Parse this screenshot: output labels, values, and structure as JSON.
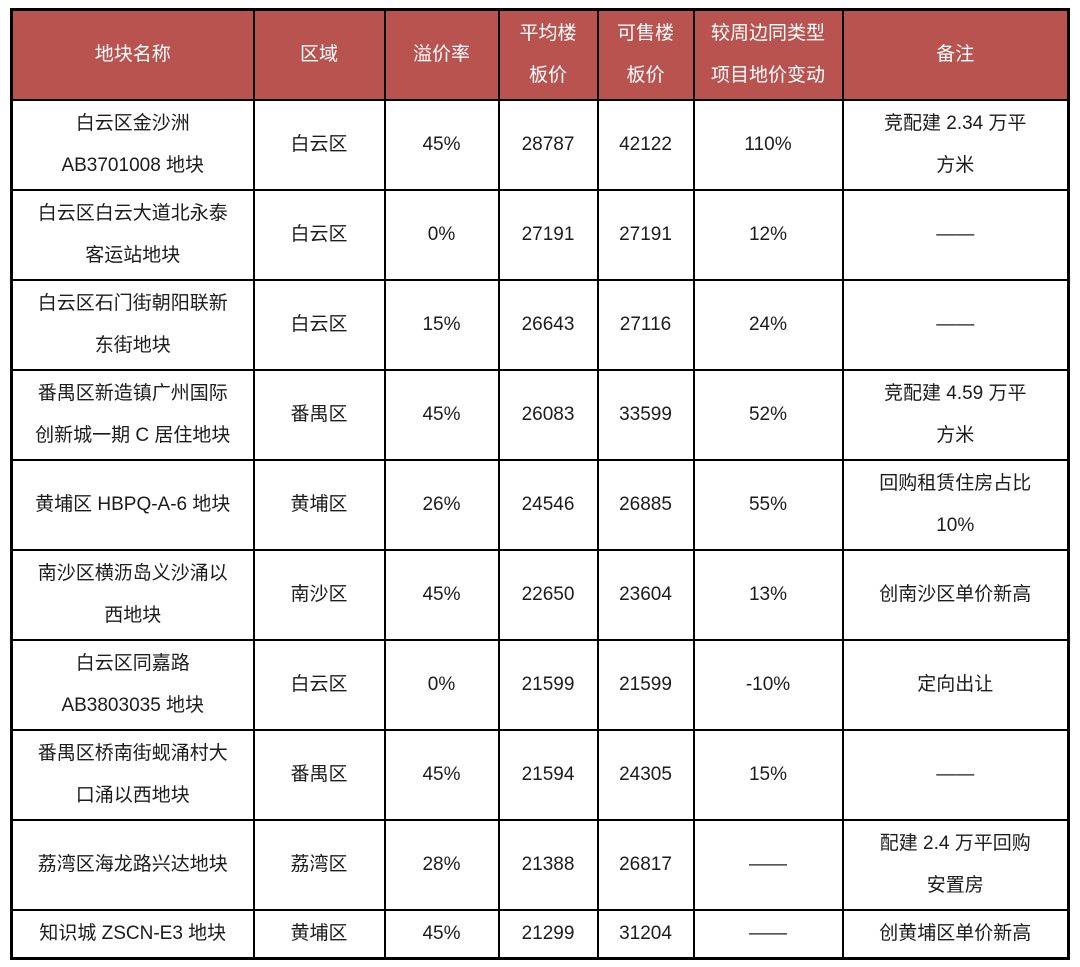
{
  "theme": {
    "header_bg": "#b9534f",
    "header_text": "#ffffff",
    "border_color": "#000000",
    "body_text": "#1c1c1c"
  },
  "table": {
    "columns": [
      "地块名称",
      "区域",
      "溢价率",
      "平均楼\n板价",
      "可售楼\n板价",
      "较周边同类型\n项目地价变动",
      "备注"
    ],
    "rows": [
      {
        "name": "白云区金沙洲\nAB3701008 地块",
        "region": "白云区",
        "premium_rate": "45%",
        "avg_floor_price": "28787",
        "sellable_floor_price": "42122",
        "land_price_change": "110%",
        "remark": "竞配建 2.34 万平\n方米"
      },
      {
        "name": "白云区白云大道北永泰\n客运站地块",
        "region": "白云区",
        "premium_rate": "0%",
        "avg_floor_price": "27191",
        "sellable_floor_price": "27191",
        "land_price_change": "12%",
        "remark": "——"
      },
      {
        "name": "白云区石门街朝阳联新\n东街地块",
        "region": "白云区",
        "premium_rate": "15%",
        "avg_floor_price": "26643",
        "sellable_floor_price": "27116",
        "land_price_change": "24%",
        "remark": "——"
      },
      {
        "name": "番禺区新造镇广州国际\n创新城一期 C 居住地块",
        "region": "番禺区",
        "premium_rate": "45%",
        "avg_floor_price": "26083",
        "sellable_floor_price": "33599",
        "land_price_change": "52%",
        "remark": "竞配建 4.59 万平\n方米"
      },
      {
        "name": "黄埔区 HBPQ-A-6 地块",
        "region": "黄埔区",
        "premium_rate": "26%",
        "avg_floor_price": "24546",
        "sellable_floor_price": "26885",
        "land_price_change": "55%",
        "remark": "回购租赁住房占比\n10%"
      },
      {
        "name": "南沙区横沥岛义沙涌以\n西地块",
        "region": "南沙区",
        "premium_rate": "45%",
        "avg_floor_price": "22650",
        "sellable_floor_price": "23604",
        "land_price_change": "13%",
        "remark": "创南沙区单价新高"
      },
      {
        "name": "白云区同嘉路\nAB3803035 地块",
        "region": "白云区",
        "premium_rate": "0%",
        "avg_floor_price": "21599",
        "sellable_floor_price": "21599",
        "land_price_change": "-10%",
        "remark": "定向出让"
      },
      {
        "name": "番禺区桥南街蚬涌村大\n口涌以西地块",
        "region": "番禺区",
        "premium_rate": "45%",
        "avg_floor_price": "21594",
        "sellable_floor_price": "24305",
        "land_price_change": "15%",
        "remark": "——"
      },
      {
        "name": "荔湾区海龙路兴达地块",
        "region": "荔湾区",
        "premium_rate": "28%",
        "avg_floor_price": "21388",
        "sellable_floor_price": "26817",
        "land_price_change": "——",
        "remark": "配建 2.4 万平回购\n安置房"
      },
      {
        "name": "知识城 ZSCN-E3 地块",
        "region": "黄埔区",
        "premium_rate": "45%",
        "avg_floor_price": "21299",
        "sellable_floor_price": "31204",
        "land_price_change": "——",
        "remark": "创黄埔区单价新高"
      }
    ]
  }
}
